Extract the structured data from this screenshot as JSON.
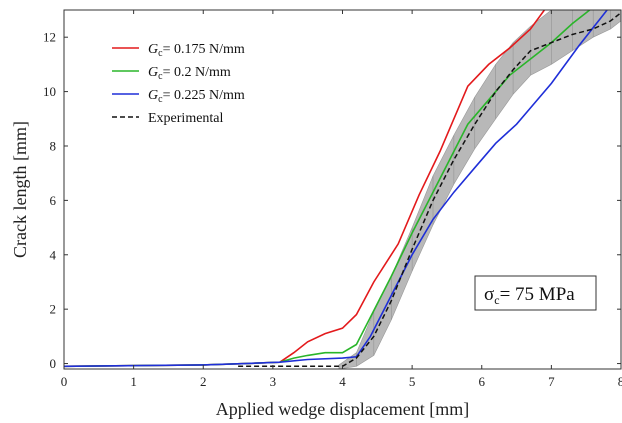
{
  "chart_data": {
    "type": "line",
    "xlabel": "Applied wedge displacement   [mm]",
    "ylabel": "Crack length   [mm]",
    "xlim": [
      0,
      8
    ],
    "ylim": [
      -0.2,
      13
    ],
    "xticks": [
      0,
      1,
      2,
      3,
      4,
      5,
      6,
      7,
      8
    ],
    "yticks": [
      0,
      2,
      4,
      6,
      8,
      10,
      12
    ],
    "grid": false,
    "legend_position": "top-left",
    "series": [
      {
        "name": "Gc= 0.175 N/mm",
        "name_parts": {
          "symbol": "G",
          "subscript": "c",
          "value": "= 0.175 N/mm"
        },
        "color": "#e31a1c",
        "style": "solid",
        "x": [
          0,
          2.0,
          2.6,
          3.1,
          3.3,
          3.5,
          3.75,
          4.0,
          4.2,
          4.45,
          4.8,
          5.1,
          5.4,
          5.8,
          6.1,
          6.4,
          6.7,
          6.9
        ],
        "y": [
          -0.1,
          -0.05,
          0.0,
          0.05,
          0.4,
          0.8,
          1.1,
          1.3,
          1.8,
          3.0,
          4.4,
          6.2,
          7.8,
          10.2,
          11.0,
          11.6,
          12.3,
          13.0
        ]
      },
      {
        "name": "Gc= 0.2 N/mm",
        "name_parts": {
          "symbol": "G",
          "subscript": "c",
          "value": "= 0.2 N/mm"
        },
        "color": "#2ab52a",
        "style": "solid",
        "x": [
          0,
          2.0,
          2.6,
          3.1,
          3.3,
          3.5,
          3.75,
          4.0,
          4.2,
          4.4,
          4.7,
          5.0,
          5.3,
          5.8,
          6.1,
          6.4,
          6.7,
          7.0,
          7.3,
          7.55
        ],
        "y": [
          -0.1,
          -0.05,
          0.0,
          0.05,
          0.2,
          0.3,
          0.4,
          0.4,
          0.7,
          1.7,
          3.2,
          4.8,
          6.3,
          8.8,
          9.7,
          10.6,
          11.2,
          11.8,
          12.5,
          13.0
        ]
      },
      {
        "name": "Gc= 0.225 N/mm",
        "name_parts": {
          "symbol": "G",
          "subscript": "c",
          "value": "= 0.225 N/mm"
        },
        "color": "#1f2fd8",
        "style": "solid",
        "x": [
          0,
          2.0,
          2.6,
          3.1,
          3.5,
          4.0,
          4.2,
          4.4,
          4.7,
          5.0,
          5.3,
          5.6,
          5.9,
          6.2,
          6.5,
          6.7,
          7.0,
          7.4,
          7.8
        ],
        "y": [
          -0.1,
          -0.05,
          0.0,
          0.05,
          0.15,
          0.2,
          0.25,
          1.0,
          2.5,
          4.0,
          5.3,
          6.3,
          7.2,
          8.1,
          8.8,
          9.4,
          10.3,
          11.7,
          13.0
        ]
      },
      {
        "name": "Experimental",
        "color": "#111111",
        "style": "dashed",
        "x": [
          2.5,
          3.0,
          3.5,
          4.0,
          4.2,
          4.45,
          4.7,
          5.0,
          5.3,
          5.6,
          5.9,
          6.2,
          6.45,
          6.7,
          7.0,
          7.3,
          7.6,
          7.85,
          8.0
        ],
        "y": [
          -0.1,
          -0.1,
          -0.1,
          -0.1,
          0.2,
          1.0,
          2.3,
          4.2,
          6.0,
          7.5,
          8.8,
          10.0,
          10.8,
          11.5,
          11.8,
          12.1,
          12.3,
          12.6,
          12.9
        ]
      }
    ],
    "band": {
      "color": "#b8b8b8",
      "x": [
        3.95,
        4.2,
        4.45,
        4.7,
        5.0,
        5.3,
        5.6,
        5.9,
        6.2,
        6.45,
        6.7,
        7.0,
        7.3,
        7.6,
        7.85,
        8.0
      ],
      "lower": [
        -0.2,
        -0.1,
        0.3,
        1.6,
        3.4,
        5.1,
        6.6,
        7.9,
        9.0,
        9.9,
        10.6,
        11.0,
        11.5,
        12.0,
        12.3,
        12.6
      ],
      "upper": [
        -0.05,
        0.4,
        1.9,
        3.2,
        5.0,
        6.9,
        8.4,
        9.8,
        11.0,
        11.8,
        12.4,
        13.0,
        13.0,
        13.0,
        13.0,
        13.0
      ]
    },
    "annotation": {
      "symbol": "σ",
      "subscript": "c",
      "value": "= 75 MPa"
    }
  }
}
